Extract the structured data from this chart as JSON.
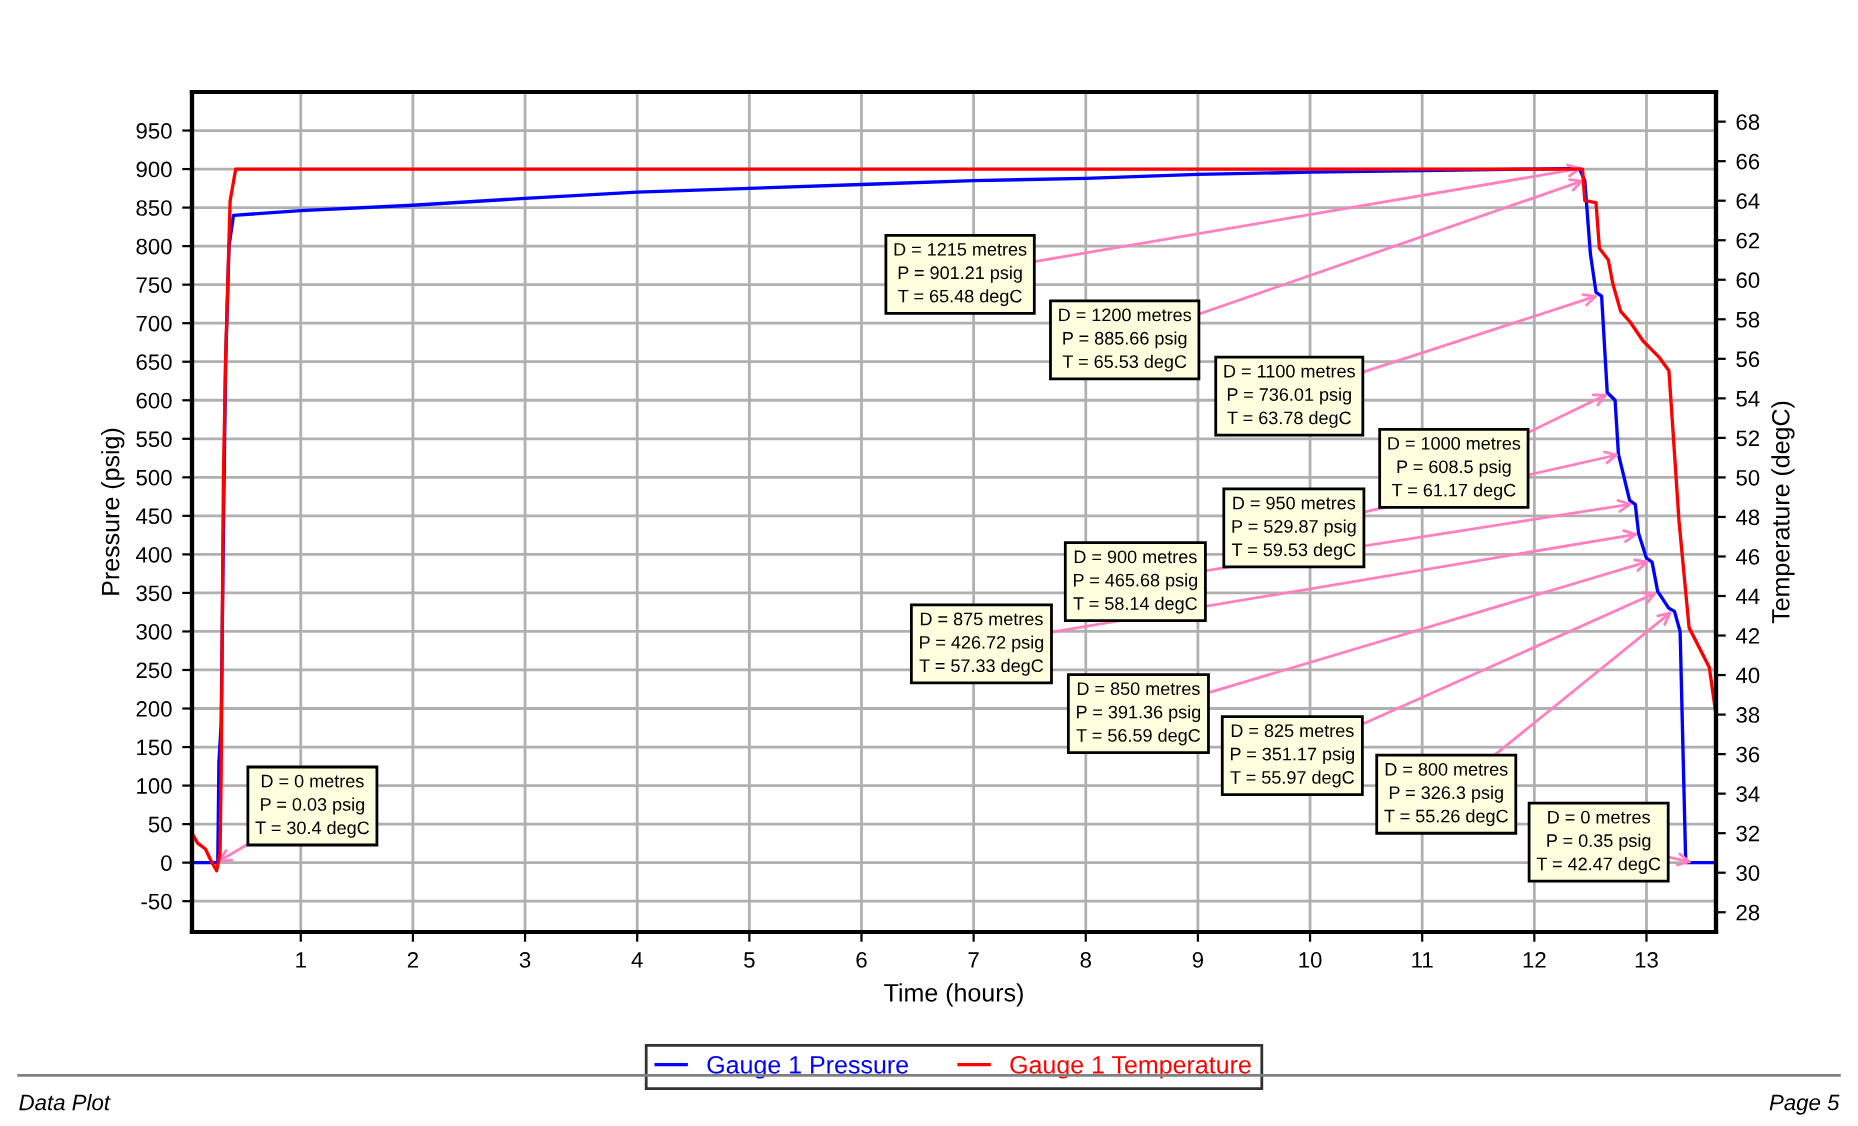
{
  "chart_data": {
    "type": "line",
    "xlabel": "Time (hours)",
    "ylabel": "Pressure (psig)",
    "y2label": "Temperature (degC)",
    "xlim": [
      0.03,
      13.62
    ],
    "xticks": [
      1,
      2,
      3,
      4,
      5,
      6,
      7,
      8,
      9,
      10,
      11,
      12,
      13
    ],
    "ylim": [
      -90,
      1000
    ],
    "yticks": [
      -50,
      0,
      50,
      100,
      150,
      200,
      250,
      300,
      350,
      400,
      450,
      500,
      550,
      600,
      650,
      700,
      750,
      800,
      850,
      900,
      950
    ],
    "y2lim": [
      27,
      69.5
    ],
    "y2ticks": [
      28,
      30,
      32,
      34,
      36,
      38,
      40,
      42,
      44,
      46,
      48,
      50,
      52,
      54,
      56,
      58,
      60,
      62,
      64,
      66,
      68
    ],
    "grid": true,
    "legend": "bottom",
    "marker": "none",
    "line_style": "solid",
    "series": [
      {
        "name": "Gauge 1 Pressure",
        "color": "#0000ff",
        "x": [
          0.03,
          0.26,
          0.27,
          0.29,
          0.31,
          0.33,
          0.36,
          0.38,
          0.4,
          1,
          2,
          3,
          4,
          5,
          6,
          7,
          8,
          9,
          10,
          11,
          12,
          12.4,
          12.45,
          12.5,
          12.55,
          12.6,
          12.65,
          12.72,
          12.75,
          12.85,
          12.9,
          12.93,
          13.0,
          13.05,
          13.1,
          13.2,
          13.25,
          13.3,
          13.35,
          13.62
        ],
        "values": [
          0,
          0,
          130,
          180,
          430,
          650,
          800,
          820,
          840,
          846,
          853,
          862,
          870,
          875,
          880,
          885,
          888,
          893,
          896,
          898,
          900,
          901,
          885,
          790,
          740,
          735,
          610,
          600,
          530,
          470,
          465,
          427,
          395,
          390,
          352,
          330,
          326,
          300,
          0,
          0
        ]
      },
      {
        "name": "Gauge 1 Temperature",
        "color": "#ff0000",
        "axis": "y2",
        "x": [
          0.03,
          0.08,
          0.15,
          0.2,
          0.25,
          0.28,
          0.29,
          0.31,
          0.33,
          0.35,
          0.37,
          0.42,
          12.43,
          12.45,
          12.55,
          12.58,
          12.66,
          12.7,
          12.77,
          12.85,
          12.97,
          13.11,
          13.2,
          13.23,
          13.29,
          13.38,
          13.56,
          13.62
        ],
        "values": [
          32,
          31.5,
          31.2,
          30.6,
          30.1,
          31,
          35,
          49.9,
          56,
          60,
          64,
          65.6,
          65.6,
          64,
          63.9,
          61.6,
          61,
          59.8,
          58.4,
          57.9,
          56.9,
          56.1,
          55.4,
          52.9,
          47.8,
          42.4,
          40.4,
          38
        ]
      }
    ],
    "annotations": [
      "Data Plot",
      "Page 5",
      {
        "text": "D = 0 metres\nP = 0.03 psig\nT = 30.4 degC",
        "x": 0.25,
        "y": 0.03
      },
      {
        "text": "D = 1215 metres\nP = 901.21 psig\nT = 65.48 degC",
        "x": 12.43,
        "y": 901.21
      },
      {
        "text": "D = 1200 metres\nP = 885.66 psig\nT = 65.53 degC",
        "x": 12.45,
        "y": 885.66
      },
      {
        "text": "D = 1100 metres\nP = 736.01 psig\nT = 63.78 degC",
        "x": 12.57,
        "y": 736.01
      },
      {
        "text": "D = 1000 metres\nP = 608.5 psig\nT = 61.17 degC",
        "x": 12.66,
        "y": 608.5
      },
      {
        "text": "D = 950 metres\nP = 529.87 psig\nT = 59.53 degC",
        "x": 12.76,
        "y": 529.87
      },
      {
        "text": "D = 900 metres\nP = 465.68 psig\nT = 58.14 degC",
        "x": 12.88,
        "y": 465.68
      },
      {
        "text": "D = 875 metres\nP = 426.72 psig\nT = 57.33 degC",
        "x": 12.93,
        "y": 426.72
      },
      {
        "text": "D = 850 metres\nP = 391.36 psig\nT = 56.59 degC",
        "x": 13.03,
        "y": 391.36
      },
      {
        "text": "D = 825 metres\nP = 351.17 psig\nT = 55.97 degC",
        "x": 13.1,
        "y": 351.17
      },
      {
        "text": "D = 800 metres\nP = 326.3 psig\nT = 55.26 degC",
        "x": 13.23,
        "y": 326.3
      },
      {
        "text": "D = 0 metres\nP = 0.35 psig\nT = 42.47 degC",
        "x": 13.41,
        "y": 0.35
      }
    ]
  }
}
